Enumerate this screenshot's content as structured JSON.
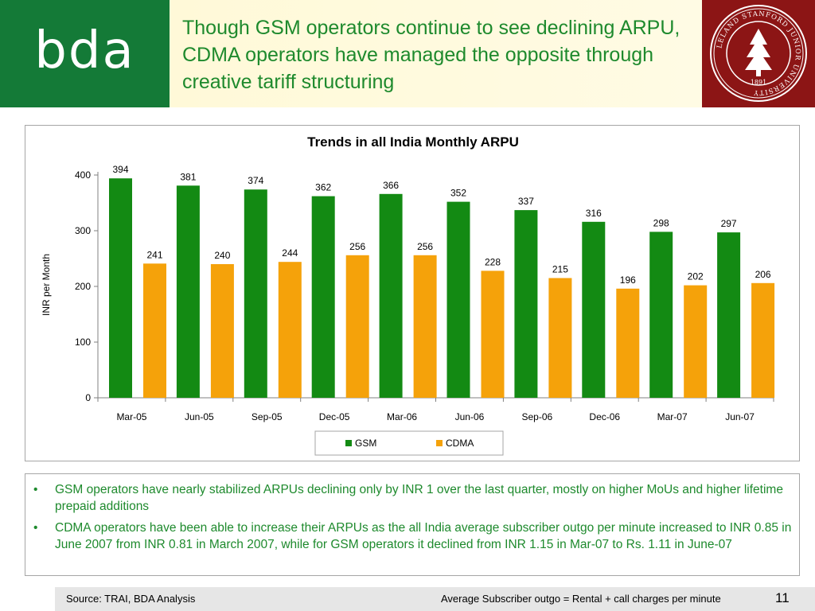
{
  "header": {
    "logo": "bda",
    "title": "Though GSM operators continue to see declining ARPU, CDMA operators have managed the opposite through creative tariff structuring",
    "seal_text": "LELAND STANFORD JUNIOR UNIVERSITY",
    "seal_year": "1891"
  },
  "colors": {
    "brand_green": "#147a37",
    "title_green": "#1e8a2d",
    "gsm": "#138a13",
    "cdma": "#f5a20a",
    "seal_red": "#8c1515"
  },
  "chart_data": {
    "type": "bar",
    "title": "Trends in all India Monthly ARPU",
    "xlabel": "",
    "ylabel": "INR per Month",
    "ylim": [
      0,
      400
    ],
    "yticks": [
      0,
      100,
      200,
      300,
      400
    ],
    "categories": [
      "Mar-05",
      "Jun-05",
      "Sep-05",
      "Dec-05",
      "Mar-06",
      "Jun-06",
      "Sep-06",
      "Dec-06",
      "Mar-07",
      "Jun-07"
    ],
    "series": [
      {
        "name": "GSM",
        "values": [
          394,
          381,
          374,
          362,
          366,
          352,
          337,
          316,
          298,
          297
        ]
      },
      {
        "name": "CDMA",
        "values": [
          241,
          240,
          244,
          256,
          256,
          228,
          215,
          196,
          202,
          206
        ]
      }
    ],
    "legend": "bottom-center",
    "grid": false
  },
  "bullets": [
    "GSM operators have nearly stabilized ARPUs declining only by INR 1 over the last quarter, mostly on higher MoUs and higher lifetime prepaid additions",
    "CDMA operators have been able to increase their ARPUs as the all India average subscriber outgo per minute increased to INR 0.85 in June 2007 from INR 0.81 in March 2007, while for GSM operators it declined from INR 1.15 in Mar-07 to Rs. 1.11 in June-07"
  ],
  "footer": {
    "source": "Source: TRAI, BDA Analysis",
    "note": "Average Subscriber outgo = Rental + call charges per minute",
    "page_number": "11"
  }
}
